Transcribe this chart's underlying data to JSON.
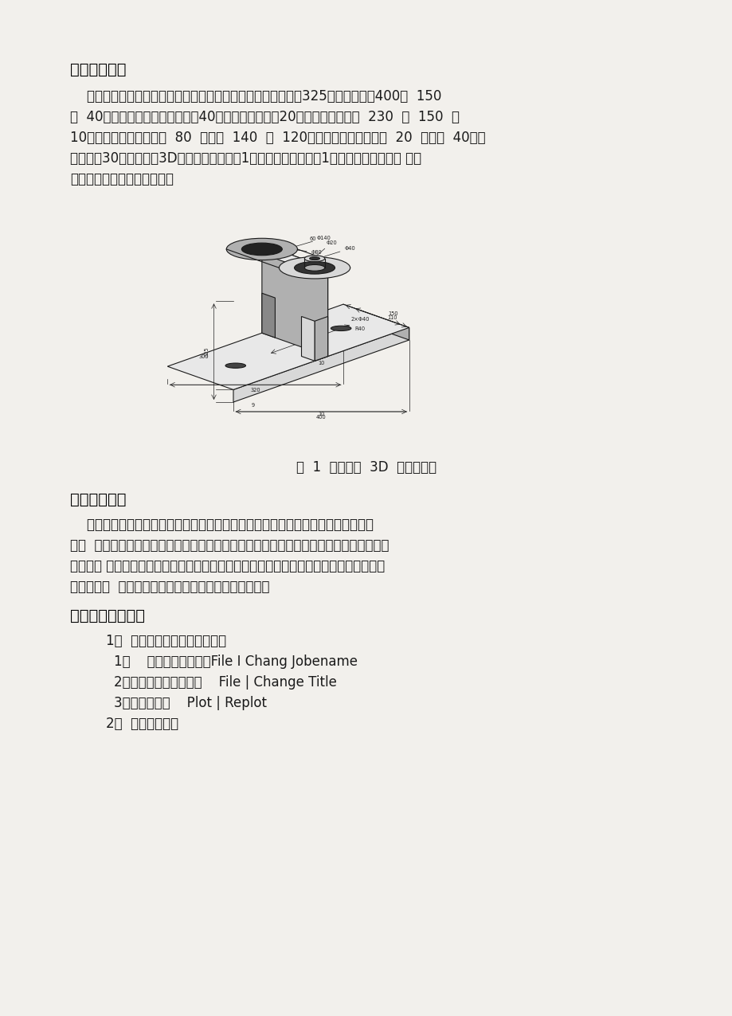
{
  "page_bg": "#f2f0ec",
  "text_color": "#1a1a1a",
  "heading_color": "#000000",
  "title1": "一、问题描述",
  "para1_lines": [
    "    该建模的支座零件由底板、肋板和空心圆柱组成。整个支座高325，支座底板长400宽  150",
    "高  40，支座底板两个倒角半径为40，两个圆孔半径为20，底板下方凹槽长  230  宽  150  高",
    "10；大空心圆柱体内径为  80  外径为  140  长  120，小空心圆柱体内径为  20  外径为  40，各",
    "个肋板宽30。支座零件3D结构示意图如下图1所示，要求根据如图1所示的尺寸进行自顶 向下",
    "建模并进行有限元网格划分。"
  ],
  "fig_caption": "图  1  支座零件  3D  结构示意图",
  "title2": "二、问题分析",
  "para2_lines": [
    "    这个支座底板有两个倒角和两个圆孔，底板下方还有个凹槽底板上方有两块肋板相",
    "接，  助板上两个大小空心圆柱相贯。可以采用自顶向下建模：首先建支座底板然后在底板",
    "上倒角、 打孔，其次建立肋板，接着在肋板上建立空心圆柱然后在空心圆柱上打孔，再修",
    "正肋板，增  加肋板，最后体相加然后划分有限元网格。"
  ],
  "title3": "三、实体建模过程",
  "list_items": [
    "1、  定义工作文件名和工作标题",
    "1）    定义工作文件名：File I Chang Jobename",
    "2）定义工作工作标题：    File | Change Title",
    "3）重新显示：    Plot | Replot",
    "2、  显示工作平面"
  ],
  "font_size_body": 12,
  "font_size_heading": 14
}
